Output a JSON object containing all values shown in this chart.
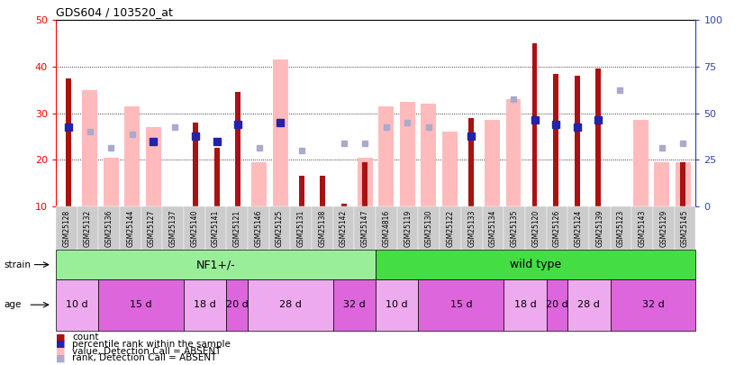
{
  "title": "GDS604 / 103520_at",
  "samples": [
    "GSM25128",
    "GSM25132",
    "GSM25136",
    "GSM25144",
    "GSM25127",
    "GSM25137",
    "GSM25140",
    "GSM25141",
    "GSM25121",
    "GSM25146",
    "GSM25125",
    "GSM25131",
    "GSM25138",
    "GSM25142",
    "GSM25147",
    "GSM24816",
    "GSM25119",
    "GSM25130",
    "GSM25122",
    "GSM25133",
    "GSM25134",
    "GSM25135",
    "GSM25120",
    "GSM25126",
    "GSM25124",
    "GSM25139",
    "GSM25123",
    "GSM25143",
    "GSM25129",
    "GSM25145"
  ],
  "count_values": [
    37.5,
    null,
    null,
    null,
    null,
    null,
    28.0,
    22.5,
    34.5,
    null,
    null,
    16.5,
    16.5,
    10.5,
    19.5,
    null,
    null,
    null,
    null,
    29.0,
    null,
    null,
    45.0,
    38.5,
    38.0,
    39.5,
    null,
    null,
    null,
    19.5
  ],
  "rank_values": [
    27.0,
    null,
    null,
    null,
    24.0,
    null,
    25.0,
    24.0,
    27.5,
    null,
    28.0,
    null,
    null,
    null,
    null,
    null,
    null,
    null,
    null,
    25.0,
    null,
    null,
    28.5,
    27.5,
    27.0,
    28.5,
    null,
    null,
    null,
    null
  ],
  "absent_count_values": [
    null,
    35.0,
    20.5,
    31.5,
    27.0,
    null,
    null,
    null,
    null,
    19.5,
    41.5,
    null,
    null,
    null,
    20.5,
    31.5,
    32.5,
    32.0,
    26.0,
    null,
    28.5,
    33.0,
    null,
    null,
    null,
    null,
    null,
    28.5,
    19.5,
    19.5
  ],
  "absent_rank_values": [
    null,
    26.0,
    22.5,
    25.5,
    null,
    27.0,
    null,
    null,
    null,
    22.5,
    null,
    22.0,
    null,
    23.5,
    23.5,
    27.0,
    28.0,
    27.0,
    null,
    null,
    null,
    33.0,
    null,
    null,
    null,
    null,
    35.0,
    null,
    22.5,
    23.5
  ],
  "ylim_left": [
    10,
    50
  ],
  "ylim_right": [
    0,
    100
  ],
  "yticks_left": [
    10,
    20,
    30,
    40,
    50
  ],
  "yticks_right": [
    0,
    25,
    50,
    75,
    100
  ],
  "bar_color_count": "#aa1111",
  "bar_color_rank": "#2222aa",
  "bar_color_absent_count": "#ffbbbb",
  "bar_color_absent_rank": "#aaaacc",
  "bg_color": "#ffffff",
  "xtick_bg": "#cccccc",
  "strain_groups": [
    {
      "label": "NF1+/-",
      "start": 0,
      "end": 15,
      "color": "#99ee99"
    },
    {
      "label": "wild type",
      "start": 15,
      "end": 30,
      "color": "#44dd44"
    }
  ],
  "age_groups": [
    {
      "label": "10 d",
      "start": 0,
      "end": 2,
      "color": "#eeaaee"
    },
    {
      "label": "15 d",
      "start": 2,
      "end": 6,
      "color": "#dd66dd"
    },
    {
      "label": "18 d",
      "start": 6,
      "end": 8,
      "color": "#eeaaee"
    },
    {
      "label": "20 d",
      "start": 8,
      "end": 9,
      "color": "#dd66dd"
    },
    {
      "label": "28 d",
      "start": 9,
      "end": 13,
      "color": "#eeaaee"
    },
    {
      "label": "32 d",
      "start": 13,
      "end": 15,
      "color": "#dd66dd"
    },
    {
      "label": "10 d",
      "start": 15,
      "end": 17,
      "color": "#eeaaee"
    },
    {
      "label": "15 d",
      "start": 17,
      "end": 21,
      "color": "#dd66dd"
    },
    {
      "label": "18 d",
      "start": 21,
      "end": 23,
      "color": "#eeaaee"
    },
    {
      "label": "20 d",
      "start": 23,
      "end": 24,
      "color": "#dd66dd"
    },
    {
      "label": "28 d",
      "start": 24,
      "end": 26,
      "color": "#eeaaee"
    },
    {
      "label": "32 d",
      "start": 26,
      "end": 30,
      "color": "#dd66dd"
    }
  ],
  "legend_items": [
    {
      "color": "#aa1111",
      "label": "count"
    },
    {
      "color": "#2222aa",
      "label": "percentile rank within the sample"
    },
    {
      "color": "#ffbbbb",
      "label": "value, Detection Call = ABSENT"
    },
    {
      "color": "#aaaacc",
      "label": "rank, Detection Call = ABSENT"
    }
  ]
}
